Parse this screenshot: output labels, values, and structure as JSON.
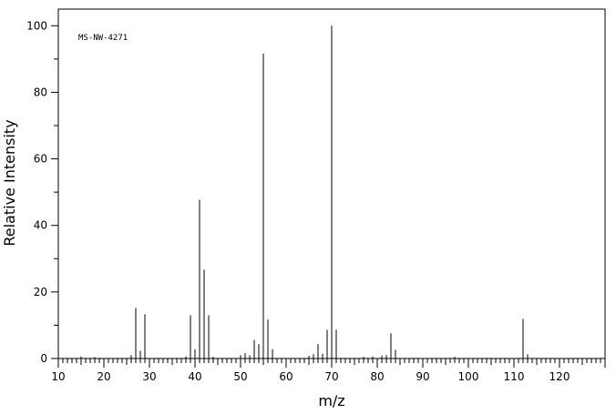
{
  "chart_data": {
    "type": "bar",
    "title": "",
    "annotation": "MS-NW-4271",
    "xlabel": "m/z",
    "ylabel": "Relative Intensity",
    "xlim": [
      10,
      130
    ],
    "ylim": [
      0,
      105
    ],
    "x_ticks": [
      10,
      20,
      30,
      40,
      50,
      60,
      70,
      80,
      90,
      100,
      110,
      120
    ],
    "y_ticks": [
      0,
      20,
      40,
      60,
      80,
      100
    ],
    "grid": false,
    "legend": "none",
    "peaks": [
      {
        "mz": 15,
        "intensity": 0.6
      },
      {
        "mz": 18,
        "intensity": 0.4
      },
      {
        "mz": 26,
        "intensity": 1.0
      },
      {
        "mz": 27,
        "intensity": 15.2
      },
      {
        "mz": 28,
        "intensity": 2.3
      },
      {
        "mz": 29,
        "intensity": 13.3
      },
      {
        "mz": 38,
        "intensity": 0.6
      },
      {
        "mz": 39,
        "intensity": 13.0
      },
      {
        "mz": 40,
        "intensity": 2.8
      },
      {
        "mz": 41,
        "intensity": 47.7
      },
      {
        "mz": 42,
        "intensity": 26.7
      },
      {
        "mz": 43,
        "intensity": 13.0
      },
      {
        "mz": 44,
        "intensity": 0.5
      },
      {
        "mz": 50,
        "intensity": 1.0
      },
      {
        "mz": 51,
        "intensity": 1.6
      },
      {
        "mz": 52,
        "intensity": 1.0
      },
      {
        "mz": 53,
        "intensity": 5.6
      },
      {
        "mz": 54,
        "intensity": 4.3
      },
      {
        "mz": 55,
        "intensity": 91.6
      },
      {
        "mz": 56,
        "intensity": 11.7
      },
      {
        "mz": 57,
        "intensity": 2.8
      },
      {
        "mz": 65,
        "intensity": 0.8
      },
      {
        "mz": 66,
        "intensity": 1.3
      },
      {
        "mz": 67,
        "intensity": 4.3
      },
      {
        "mz": 68,
        "intensity": 1.4
      },
      {
        "mz": 69,
        "intensity": 8.6
      },
      {
        "mz": 70,
        "intensity": 100.0
      },
      {
        "mz": 71,
        "intensity": 8.6
      },
      {
        "mz": 77,
        "intensity": 0.5
      },
      {
        "mz": 79,
        "intensity": 0.6
      },
      {
        "mz": 81,
        "intensity": 0.9
      },
      {
        "mz": 82,
        "intensity": 1.0
      },
      {
        "mz": 83,
        "intensity": 7.6
      },
      {
        "mz": 84,
        "intensity": 2.6
      },
      {
        "mz": 97,
        "intensity": 0.5
      },
      {
        "mz": 112,
        "intensity": 11.9
      },
      {
        "mz": 113,
        "intensity": 1.3
      }
    ]
  }
}
